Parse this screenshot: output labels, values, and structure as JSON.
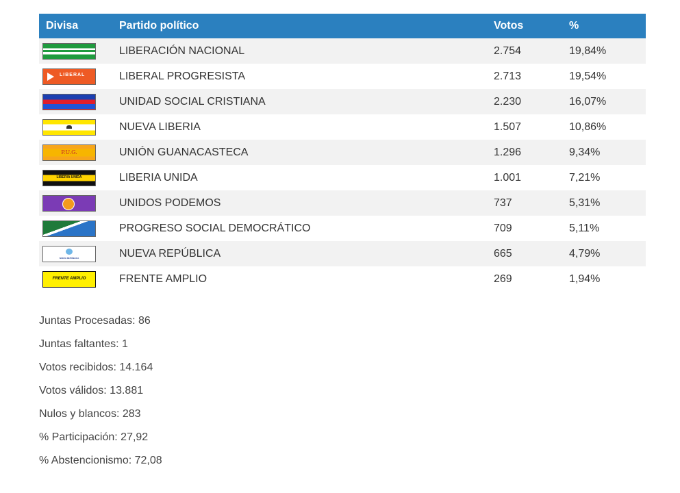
{
  "table": {
    "headers": {
      "flag": "Divisa",
      "party": "Partido político",
      "votes": "Votos",
      "percent": "%"
    },
    "rows": [
      {
        "flag_label": "",
        "party": "LIBERACIÓN NACIONAL",
        "votes": "2.754",
        "percent": "19,84%"
      },
      {
        "flag_label": "LIBERAL",
        "party": "LIBERAL PROGRESISTA",
        "votes": "2.713",
        "percent": "19,54%"
      },
      {
        "flag_label": "",
        "party": "UNIDAD SOCIAL CRISTIANA",
        "votes": "2.230",
        "percent": "16,07%"
      },
      {
        "flag_label": "",
        "party": "NUEVA LIBERIA",
        "votes": "1.507",
        "percent": "10,86%"
      },
      {
        "flag_label": "P.U.G.",
        "party": "UNIÓN GUANACASTECA",
        "votes": "1.296",
        "percent": "9,34%"
      },
      {
        "flag_label": "LIBERIA UNIDA",
        "party": "LIBERIA UNIDA",
        "votes": "1.001",
        "percent": "7,21%"
      },
      {
        "flag_label": "",
        "party": "UNIDOS PODEMOS",
        "votes": "737",
        "percent": "5,31%"
      },
      {
        "flag_label": "",
        "party": "PROGRESO SOCIAL DEMOCRÁTICO",
        "votes": "709",
        "percent": "5,11%"
      },
      {
        "flag_label": "NUEVA REPÚBLICA",
        "party": "NUEVA REPÚBLICA",
        "votes": "665",
        "percent": "4,79%"
      },
      {
        "flag_label": "FRENTE AMPLIO",
        "party": "FRENTE AMPLIO",
        "votes": "269",
        "percent": "1,94%"
      }
    ]
  },
  "stats": [
    "Juntas Procesadas: 86",
    "Juntas faltantes: 1",
    "Votos recibidos: 14.164",
    "Votos válidos: 13.881",
    "Nulos y blancos: 283",
    "% Participación: 27,92",
    "% Abstencionismo: 72,08"
  ],
  "colors": {
    "header_bg": "#2b80bf",
    "stripe_bg": "#f2f2f2"
  }
}
